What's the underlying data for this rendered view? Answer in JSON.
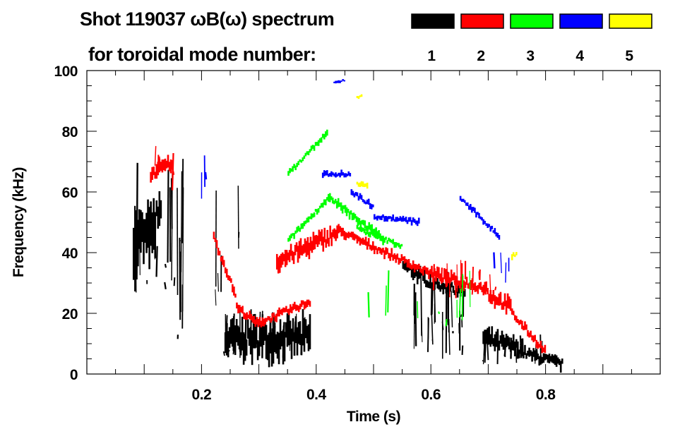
{
  "chart_data": {
    "type": "heatmap",
    "title": "Shot 119037 ωB(ω) spectrum",
    "subtitle": "for toroidal mode number:",
    "xlabel": "Time (s)",
    "ylabel": "Frequency (kHz)",
    "xlim": [
      0,
      1.0
    ],
    "ylim": [
      0,
      100
    ],
    "xticks": [
      0.2,
      0.4,
      0.6,
      0.8
    ],
    "xtick_labels": [
      "0.2",
      "0.4",
      "0.6",
      "0.8"
    ],
    "yticks": [
      0,
      20,
      40,
      60,
      80,
      100
    ],
    "ytick_labels": [
      "0",
      "20",
      "40",
      "60",
      "80",
      "100"
    ],
    "grid": false,
    "legend": {
      "placement": "top-right",
      "entries": [
        {
          "label": "1",
          "color": "#000000"
        },
        {
          "label": "2",
          "color": "#ff0000"
        },
        {
          "label": "3",
          "color": "#00ff00"
        },
        {
          "label": "4",
          "color": "#0000ff"
        },
        {
          "label": "5",
          "color": "#ffff00"
        }
      ]
    },
    "series": [
      {
        "name": "1",
        "color": "#000000",
        "bands": [
          [
            0.08,
            45,
            0.12,
            45,
            18
          ],
          [
            0.1,
            45,
            0.13,
            55,
            12
          ],
          [
            0.24,
            11,
            0.39,
            12,
            12
          ],
          [
            0.55,
            36,
            0.6,
            30,
            5
          ],
          [
            0.6,
            30,
            0.66,
            27,
            4
          ],
          [
            0.69,
            12,
            0.76,
            8,
            6
          ],
          [
            0.76,
            7,
            0.83,
            3,
            4
          ]
        ],
        "streaks": [
          [
            0.08,
            0.17,
            25,
            72,
            18
          ],
          [
            0.155,
            0.17,
            5,
            72,
            6
          ],
          [
            0.22,
            0.235,
            12,
            65,
            4
          ],
          [
            0.262,
            0.268,
            40,
            66,
            2
          ],
          [
            0.24,
            0.39,
            5,
            22,
            40
          ],
          [
            0.57,
            0.66,
            5,
            35,
            30
          ],
          [
            0.69,
            0.8,
            3,
            14,
            20
          ]
        ]
      },
      {
        "name": "2",
        "color": "#ff0000",
        "bands": [
          [
            0.11,
            66,
            0.15,
            70,
            5
          ],
          [
            0.22,
            45,
            0.26,
            25,
            3
          ],
          [
            0.26,
            22,
            0.3,
            16,
            3
          ],
          [
            0.3,
            17,
            0.39,
            24,
            3
          ],
          [
            0.33,
            37,
            0.44,
            47,
            6
          ],
          [
            0.44,
            47,
            0.52,
            40,
            3
          ],
          [
            0.52,
            40,
            0.6,
            33,
            3
          ],
          [
            0.6,
            33,
            0.7,
            28,
            4
          ],
          [
            0.7,
            26,
            0.74,
            22,
            5
          ],
          [
            0.74,
            20,
            0.8,
            7,
            3
          ]
        ],
        "streaks": [
          [
            0.11,
            0.16,
            60,
            78,
            5
          ],
          [
            0.6,
            0.72,
            25,
            38,
            20
          ]
        ]
      },
      {
        "name": "3",
        "color": "#00ff00",
        "bands": [
          [
            0.35,
            44,
            0.42,
            58,
            2
          ],
          [
            0.42,
            58,
            0.52,
            44,
            3
          ],
          [
            0.35,
            66,
            0.42,
            80,
            2
          ],
          [
            0.47,
            48,
            0.55,
            42,
            2
          ]
        ],
        "streaks": [
          [
            0.45,
            0.68,
            15,
            35,
            10
          ]
        ]
      },
      {
        "name": "4",
        "color": "#0000ff",
        "bands": [
          [
            0.41,
            66,
            0.46,
            66,
            2
          ],
          [
            0.46,
            60,
            0.5,
            55,
            2
          ],
          [
            0.5,
            52,
            0.58,
            50,
            2
          ],
          [
            0.65,
            58,
            0.72,
            45,
            2
          ],
          [
            0.43,
            96,
            0.45,
            97,
            1
          ]
        ],
        "streaks": [
          [
            0.2,
            0.22,
            55,
            75,
            3
          ],
          [
            0.7,
            0.76,
            30,
            42,
            4
          ]
        ]
      },
      {
        "name": "5",
        "color": "#ffff00",
        "bands": [
          [
            0.47,
            63,
            0.49,
            62,
            2
          ],
          [
            0.47,
            91,
            0.48,
            92,
            1
          ],
          [
            0.74,
            39,
            0.75,
            40,
            2
          ]
        ],
        "streaks": []
      }
    ]
  }
}
